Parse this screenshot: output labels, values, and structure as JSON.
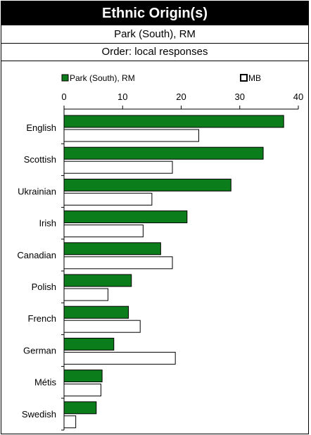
{
  "header": {
    "title": "Ethnic Origin(s)",
    "subtitle": "Park (South), RM",
    "order_note": "Order: local responses"
  },
  "colors": {
    "series_local": "#0b7d1a",
    "series_mb": "#ffffff",
    "stroke": "#000000"
  },
  "chart_data": {
    "type": "bar",
    "orientation": "horizontal",
    "categories": [
      "English",
      "Scottish",
      "Ukrainian",
      "Irish",
      "Canadian",
      "Polish",
      "French",
      "German",
      "Métis",
      "Swedish"
    ],
    "series": [
      {
        "name": "Park (South), RM",
        "values": [
          37.5,
          34,
          28.5,
          21,
          16.5,
          11.5,
          11,
          8.5,
          6.5,
          5.5
        ]
      },
      {
        "name": "MB",
        "values": [
          23,
          18.5,
          15,
          13.5,
          18.5,
          7.5,
          13,
          19,
          6.3,
          2
        ]
      }
    ],
    "xlim": [
      0,
      40
    ],
    "xticks": [
      0,
      10,
      20,
      30,
      40
    ],
    "axis_position": "top",
    "legend_position": "top",
    "grid": false
  }
}
